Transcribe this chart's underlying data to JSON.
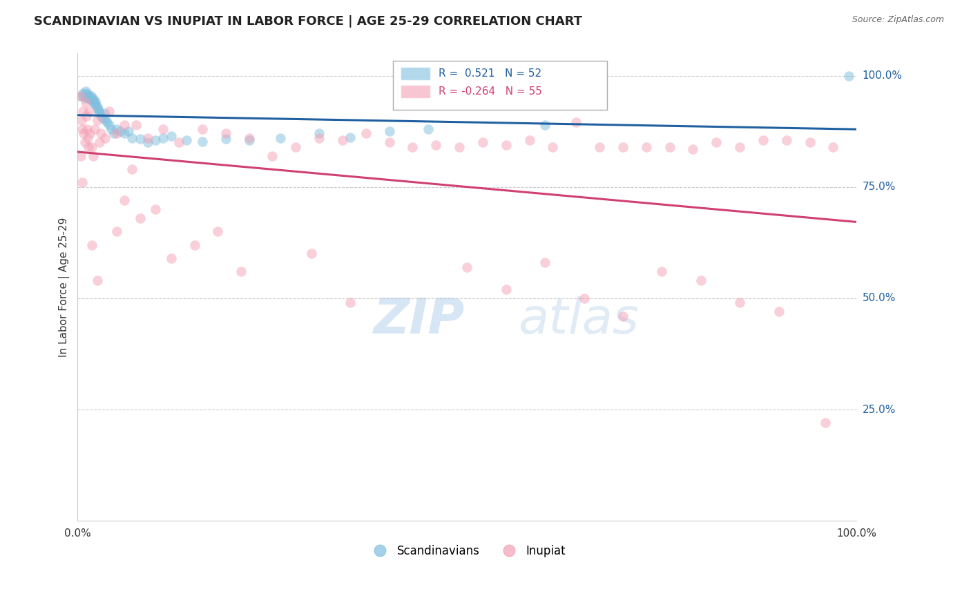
{
  "title": "SCANDINAVIAN VS INUPIAT IN LABOR FORCE | AGE 25-29 CORRELATION CHART",
  "source": "Source: ZipAtlas.com",
  "ylabel": "In Labor Force | Age 25-29",
  "xlim": [
    0.0,
    1.0
  ],
  "ylim": [
    0.0,
    1.05
  ],
  "grid_color": "#cccccc",
  "background_color": "#ffffff",
  "scandinavian_color": "#7fbfdf",
  "inupiat_color": "#f4a0b5",
  "trend_blue": "#2060a0",
  "trend_pink": "#d04070",
  "legend_R_blue": "0.521",
  "legend_N_blue": "52",
  "legend_R_pink": "-0.264",
  "legend_N_pink": "55",
  "scandinavian_x": [
    0.005,
    0.007,
    0.008,
    0.009,
    0.01,
    0.011,
    0.012,
    0.013,
    0.014,
    0.015,
    0.016,
    0.017,
    0.018,
    0.019,
    0.02,
    0.021,
    0.022,
    0.023,
    0.024,
    0.025,
    0.026,
    0.027,
    0.028,
    0.03,
    0.032,
    0.034,
    0.036,
    0.038,
    0.04,
    0.043,
    0.047,
    0.05,
    0.055,
    0.06,
    0.065,
    0.07,
    0.08,
    0.09,
    0.1,
    0.11,
    0.12,
    0.14,
    0.16,
    0.19,
    0.22,
    0.26,
    0.31,
    0.35,
    0.4,
    0.45,
    0.6,
    0.99
  ],
  "scandinavian_y": [
    0.955,
    0.96,
    0.955,
    0.95,
    0.965,
    0.96,
    0.955,
    0.95,
    0.958,
    0.952,
    0.948,
    0.955,
    0.945,
    0.95,
    0.94,
    0.945,
    0.938,
    0.942,
    0.935,
    0.93,
    0.925,
    0.92,
    0.918,
    0.91,
    0.905,
    0.915,
    0.9,
    0.895,
    0.89,
    0.88,
    0.87,
    0.88,
    0.875,
    0.87,
    0.875,
    0.86,
    0.858,
    0.85,
    0.855,
    0.86,
    0.865,
    0.855,
    0.852,
    0.858,
    0.855,
    0.86,
    0.87,
    0.862,
    0.875,
    0.88,
    0.89,
    1.0
  ],
  "inupiat_x": [
    0.003,
    0.005,
    0.006,
    0.007,
    0.008,
    0.009,
    0.01,
    0.011,
    0.012,
    0.013,
    0.014,
    0.015,
    0.016,
    0.018,
    0.02,
    0.022,
    0.025,
    0.028,
    0.03,
    0.035,
    0.04,
    0.05,
    0.06,
    0.075,
    0.09,
    0.11,
    0.13,
    0.16,
    0.19,
    0.22,
    0.25,
    0.28,
    0.31,
    0.34,
    0.37,
    0.4,
    0.43,
    0.46,
    0.49,
    0.52,
    0.55,
    0.58,
    0.61,
    0.64,
    0.67,
    0.7,
    0.73,
    0.76,
    0.79,
    0.82,
    0.85,
    0.88,
    0.91,
    0.94,
    0.97
  ],
  "inupiat_y": [
    0.955,
    0.9,
    0.88,
    0.92,
    0.87,
    0.85,
    0.94,
    0.91,
    0.88,
    0.86,
    0.84,
    0.92,
    0.87,
    0.84,
    0.82,
    0.88,
    0.9,
    0.85,
    0.87,
    0.86,
    0.92,
    0.87,
    0.89,
    0.89,
    0.86,
    0.88,
    0.85,
    0.88,
    0.87,
    0.86,
    0.82,
    0.84,
    0.86,
    0.855,
    0.87,
    0.85,
    0.84,
    0.845,
    0.84,
    0.85,
    0.845,
    0.855,
    0.84,
    0.895,
    0.84,
    0.84,
    0.84,
    0.84,
    0.835,
    0.85,
    0.84,
    0.855,
    0.855,
    0.85,
    0.84
  ],
  "inupiat_x_extra": [
    0.004,
    0.006,
    0.018,
    0.025,
    0.05,
    0.06,
    0.07,
    0.08,
    0.1,
    0.12,
    0.15,
    0.18,
    0.21,
    0.3,
    0.35,
    0.5,
    0.55,
    0.6,
    0.65,
    0.7,
    0.75,
    0.8,
    0.85,
    0.9,
    0.96
  ],
  "inupiat_y_extra": [
    0.82,
    0.76,
    0.62,
    0.54,
    0.65,
    0.72,
    0.79,
    0.68,
    0.7,
    0.59,
    0.62,
    0.65,
    0.56,
    0.6,
    0.49,
    0.57,
    0.52,
    0.58,
    0.5,
    0.46,
    0.56,
    0.54,
    0.49,
    0.47,
    0.22
  ]
}
